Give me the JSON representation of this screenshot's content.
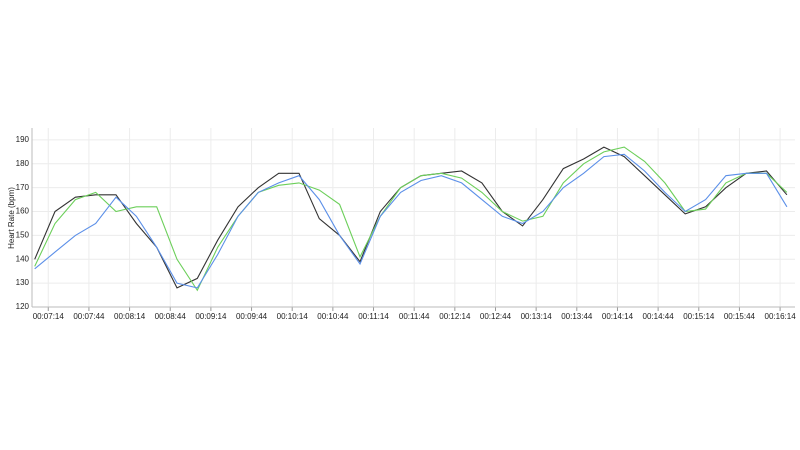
{
  "chart_data": {
    "type": "line",
    "y_label": "Heart Rate (bpm)",
    "x": [
      "00:07:04",
      "00:07:19",
      "00:07:34",
      "00:07:49",
      "00:08:04",
      "00:08:19",
      "00:08:34",
      "00:08:49",
      "00:09:04",
      "00:09:19",
      "00:09:34",
      "00:09:49",
      "00:10:04",
      "00:10:19",
      "00:10:34",
      "00:10:49",
      "00:11:04",
      "00:11:19",
      "00:11:34",
      "00:11:49",
      "00:12:04",
      "00:12:19",
      "00:12:34",
      "00:12:49",
      "00:13:04",
      "00:13:19",
      "00:13:34",
      "00:13:49",
      "00:14:04",
      "00:14:19",
      "00:14:34",
      "00:14:49",
      "00:15:04",
      "00:15:19",
      "00:15:34",
      "00:15:49",
      "00:16:04",
      "00:16:19"
    ],
    "series": [
      {
        "color": "#333333",
        "values": [
          140,
          160,
          166,
          167,
          167,
          155,
          145,
          128,
          132,
          148,
          162,
          170,
          176,
          176,
          157,
          150,
          139,
          160,
          170,
          175,
          176,
          177,
          172,
          160,
          154,
          165,
          178,
          182,
          187,
          183,
          175,
          167,
          159,
          162,
          170,
          176,
          177,
          167
        ]
      },
      {
        "color": "#6ccf5a",
        "values": [
          137,
          155,
          165,
          168,
          160,
          162,
          162,
          140,
          127,
          145,
          158,
          168,
          171,
          172,
          169,
          163,
          141,
          158,
          170,
          175,
          176,
          174,
          168,
          160,
          156,
          158,
          172,
          180,
          185,
          187,
          181,
          172,
          160,
          161,
          172,
          176,
          176,
          168
        ]
      },
      {
        "color": "#5b8fe8",
        "values": [
          136,
          143,
          150,
          155,
          166,
          158,
          145,
          130,
          128,
          142,
          158,
          168,
          172,
          175,
          165,
          150,
          138,
          158,
          168,
          173,
          175,
          172,
          165,
          158,
          155,
          160,
          170,
          176,
          183,
          184,
          177,
          168,
          160,
          165,
          175,
          176,
          176,
          162
        ]
      }
    ],
    "xlim": [
      "00:07:02",
      "00:16:25"
    ],
    "xticks": [
      "00:07:14",
      "00:07:44",
      "00:08:14",
      "00:08:44",
      "00:09:14",
      "00:09:44",
      "00:10:14",
      "00:10:44",
      "00:11:14",
      "00:11:44",
      "00:12:14",
      "00:12:44",
      "00:13:14",
      "00:13:44",
      "00:14:14",
      "00:14:44",
      "00:15:14",
      "00:15:44",
      "00:16:14"
    ],
    "ylim": [
      120,
      195
    ],
    "yticks": [
      120,
      130,
      140,
      150,
      160,
      170,
      180,
      190
    ],
    "grid": true
  }
}
